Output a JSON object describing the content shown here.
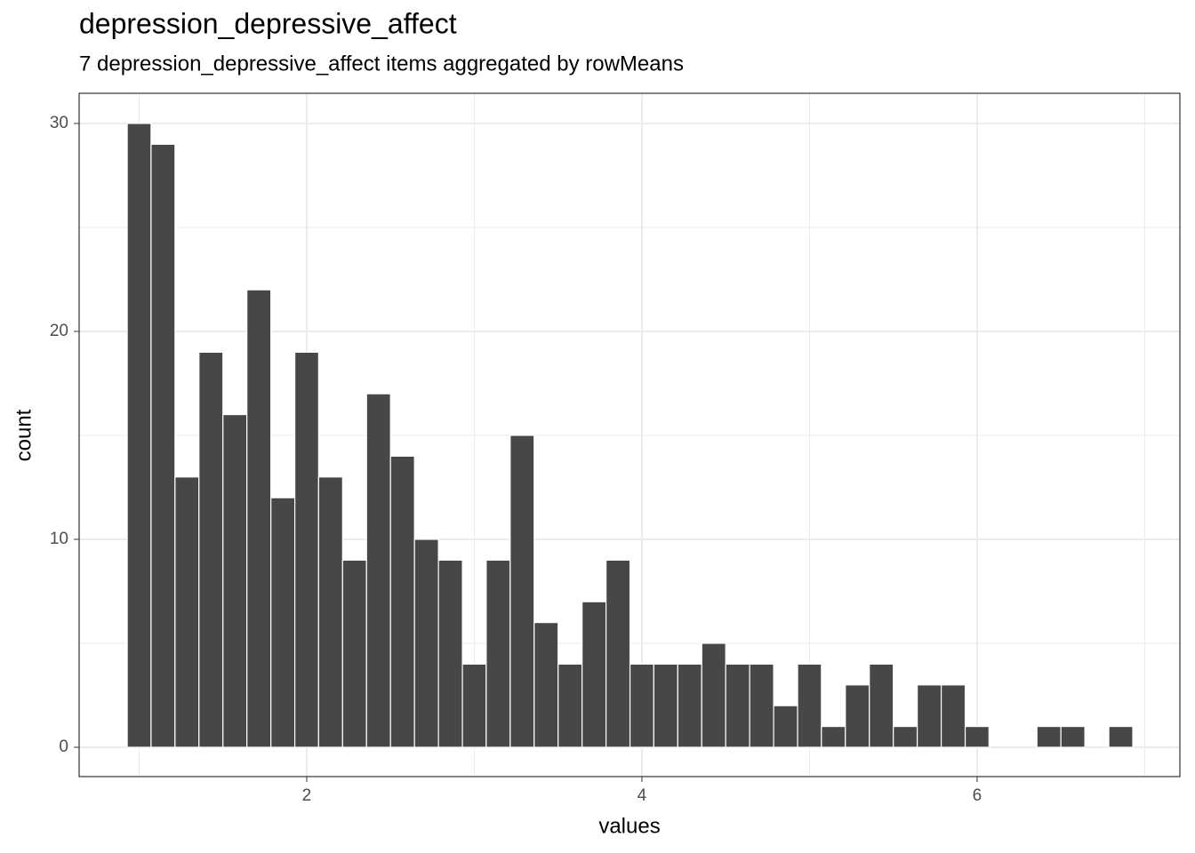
{
  "chart_data": {
    "type": "histogram",
    "title": "depression_depressive_affect",
    "subtitle": "7 depression_depressive_affect items aggregated by rowMeans",
    "x_label": "values",
    "y_label": "count",
    "bins": [
      0.929,
      1.071,
      1.214,
      1.357,
      1.5,
      1.643,
      1.786,
      1.929,
      2.071,
      2.214,
      2.357,
      2.5,
      2.643,
      2.786,
      2.929,
      3.071,
      3.214,
      3.357,
      3.5,
      3.643,
      3.786,
      3.929,
      4.071,
      4.214,
      4.357,
      4.5,
      4.643,
      4.786,
      4.929,
      5.071,
      5.214,
      5.357,
      5.5,
      5.643,
      5.786,
      5.929,
      6.071,
      6.214,
      6.357,
      6.5,
      6.643,
      6.786,
      6.929
    ],
    "values": [
      30,
      29,
      13,
      19,
      16,
      22,
      12,
      19,
      13,
      9,
      17,
      14,
      10,
      9,
      4,
      9,
      15,
      6,
      4,
      7,
      9,
      4,
      4,
      4,
      5,
      4,
      4,
      2,
      4,
      1,
      3,
      4,
      1,
      3,
      3,
      1,
      0,
      0,
      1,
      1,
      0,
      1
    ],
    "color": "#474747",
    "xlim": [
      0.642,
      7.21
    ],
    "ylim": [
      -1.41,
      31.45
    ],
    "xticks": [
      2,
      4,
      6
    ],
    "yticks": [
      0,
      10,
      20,
      30
    ],
    "x_minor_breaks": [
      1,
      3,
      5,
      7
    ],
    "y_minor_breaks": [
      5,
      15,
      25
    ],
    "grid": true
  }
}
